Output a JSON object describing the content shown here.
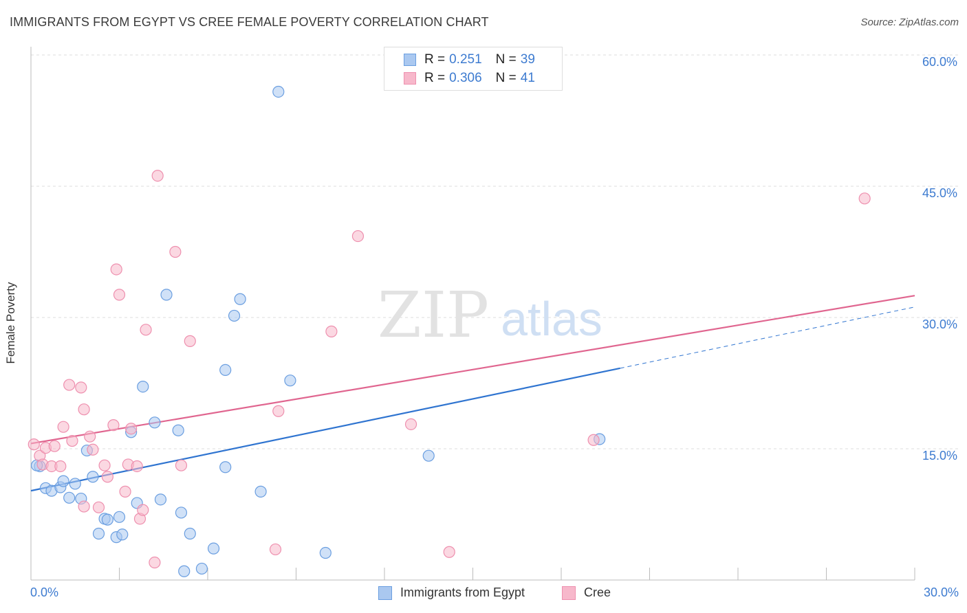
{
  "header": {
    "title": "IMMIGRANTS FROM EGYPT VS CREE FEMALE POVERTY CORRELATION CHART",
    "source": "Source: ZipAtlas.com"
  },
  "watermark": {
    "zip": "ZIP",
    "atlas": "atlas"
  },
  "legend": {
    "rows": [
      {
        "r_label": "R = ",
        "r_value": "0.251",
        "n_label": "N = ",
        "n_value": "39"
      },
      {
        "r_label": "R = ",
        "r_value": "0.306",
        "n_label": "N = ",
        "n_value": "41"
      }
    ]
  },
  "bottom_legend": [
    "Immigrants from Egypt",
    "Cree"
  ],
  "colors": {
    "blue_fill": "#aac8f0",
    "blue_stroke": "#6a9ee0",
    "blue_line": "#2f74d0",
    "pink_fill": "#f7b8cb",
    "pink_stroke": "#ee8fae",
    "pink_line": "#e0658f",
    "grid": "#dddddd",
    "tick_text": "#3d7bd0"
  },
  "chart_data": {
    "type": "scatter",
    "title": "IMMIGRANTS FROM EGYPT VS CREE FEMALE POVERTY CORRELATION CHART",
    "xlabel": "",
    "ylabel": "Female Poverty",
    "xlim": [
      0,
      30
    ],
    "ylim": [
      0,
      60
    ],
    "x_tick_labels": [
      "0.0%",
      "30.0%"
    ],
    "y_tick_labels": [
      "15.0%",
      "30.0%",
      "45.0%",
      "60.0%"
    ],
    "y_ticks": [
      15,
      30,
      45,
      60
    ],
    "grid": true,
    "series": [
      {
        "name": "Immigrants from Egypt",
        "r": 0.251,
        "n": 39,
        "trend": {
          "x": [
            0,
            20
          ],
          "y": [
            10.2,
            24.2
          ],
          "dashed_x": [
            20,
            30
          ],
          "dashed_y": [
            24.2,
            31.2
          ]
        },
        "points": [
          [
            0.3,
            13.0
          ],
          [
            0.5,
            10.5
          ],
          [
            0.7,
            10.2
          ],
          [
            1.0,
            10.6
          ],
          [
            1.1,
            11.3
          ],
          [
            1.3,
            9.4
          ],
          [
            1.5,
            11.0
          ],
          [
            1.7,
            9.3
          ],
          [
            1.9,
            14.8
          ],
          [
            2.1,
            11.8
          ],
          [
            2.3,
            5.3
          ],
          [
            2.5,
            7.0
          ],
          [
            2.6,
            6.9
          ],
          [
            2.9,
            4.9
          ],
          [
            3.0,
            7.2
          ],
          [
            3.1,
            5.2
          ],
          [
            3.4,
            16.9
          ],
          [
            3.6,
            8.8
          ],
          [
            3.8,
            22.1
          ],
          [
            4.2,
            18.0
          ],
          [
            4.4,
            9.2
          ],
          [
            4.6,
            32.6
          ],
          [
            5.0,
            17.1
          ],
          [
            5.1,
            7.7
          ],
          [
            5.2,
            1.0
          ],
          [
            5.4,
            5.3
          ],
          [
            5.8,
            1.3
          ],
          [
            6.2,
            3.6
          ],
          [
            6.6,
            12.9
          ],
          [
            6.6,
            24.0
          ],
          [
            6.9,
            30.2
          ],
          [
            7.1,
            32.1
          ],
          [
            7.8,
            10.1
          ],
          [
            8.4,
            55.8
          ],
          [
            8.8,
            22.8
          ],
          [
            10.0,
            3.1
          ],
          [
            13.5,
            14.2
          ],
          [
            19.3,
            16.1
          ],
          [
            0.2,
            13.1
          ]
        ]
      },
      {
        "name": "Cree",
        "r": 0.306,
        "n": 41,
        "trend": {
          "x": [
            0,
            30
          ],
          "y": [
            15.6,
            32.5
          ]
        },
        "points": [
          [
            0.1,
            15.5
          ],
          [
            0.3,
            14.2
          ],
          [
            0.4,
            13.2
          ],
          [
            0.5,
            15.1
          ],
          [
            0.7,
            13.0
          ],
          [
            0.8,
            15.3
          ],
          [
            1.0,
            13.0
          ],
          [
            1.1,
            17.5
          ],
          [
            1.3,
            22.3
          ],
          [
            1.4,
            15.9
          ],
          [
            1.7,
            22.0
          ],
          [
            1.8,
            8.4
          ],
          [
            1.8,
            19.5
          ],
          [
            2.0,
            16.4
          ],
          [
            2.1,
            14.9
          ],
          [
            2.3,
            8.3
          ],
          [
            2.5,
            13.1
          ],
          [
            2.6,
            11.8
          ],
          [
            2.8,
            17.7
          ],
          [
            2.9,
            35.5
          ],
          [
            3.0,
            32.6
          ],
          [
            3.2,
            10.1
          ],
          [
            3.3,
            13.2
          ],
          [
            3.4,
            17.3
          ],
          [
            3.6,
            13.0
          ],
          [
            3.7,
            7.0
          ],
          [
            3.8,
            8.0
          ],
          [
            3.9,
            28.6
          ],
          [
            4.2,
            2.0
          ],
          [
            4.3,
            46.2
          ],
          [
            4.9,
            37.5
          ],
          [
            5.1,
            13.1
          ],
          [
            5.4,
            27.3
          ],
          [
            8.3,
            3.5
          ],
          [
            8.4,
            19.3
          ],
          [
            10.2,
            28.4
          ],
          [
            11.1,
            39.3
          ],
          [
            12.9,
            17.8
          ],
          [
            14.2,
            3.2
          ],
          [
            19.1,
            16.0
          ],
          [
            28.3,
            43.6
          ]
        ]
      }
    ]
  }
}
